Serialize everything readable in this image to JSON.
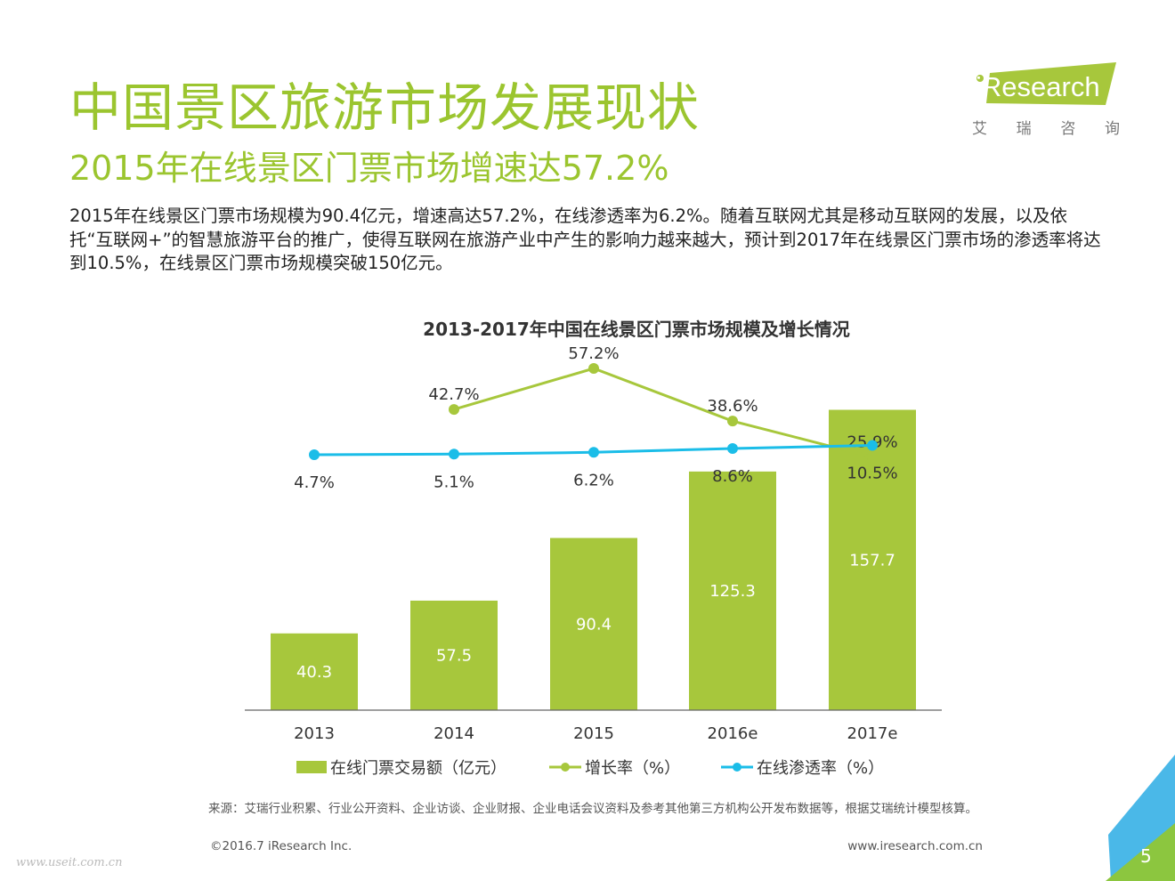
{
  "header": {
    "title": "中国景区旅游市场发展现状",
    "subtitle": "2015年在线景区门票市场增速达57.2%",
    "intro": "2015年在线景区门票市场规模为90.4亿元，增速高达57.2%，在线渗透率为6.2%。随着互联网尤其是移动互联网的发展，以及依托“互联网+”的智慧旅游平台的推广，使得互联网在旅游产业中产生的影响力越来越大，预计到2017年在线景区门票市场的渗透率将达到10.5%，在线景区门票市场规模突破150亿元。"
  },
  "logo": {
    "text": "iResearch",
    "subtitle": [
      "艾",
      "瑞",
      "咨",
      "询"
    ]
  },
  "colors": {
    "green": "#a7c73c",
    "title_green": "#9bc52f",
    "cyan": "#1bbde8",
    "triangle_green": "#8cc63f",
    "triangle_blue": "#4ab8e8"
  },
  "chart_data": {
    "type": "bar",
    "title": "2013-2017年中国在线景区门票市场规模及增长情况",
    "categories": [
      "2013",
      "2014",
      "2015",
      "2016e",
      "2017e"
    ],
    "series": [
      {
        "name": "在线门票交易额（亿元）",
        "kind": "bar",
        "values": [
          40.3,
          57.5,
          90.4,
          125.3,
          157.7
        ],
        "labels": [
          "40.3",
          "57.5",
          "90.4",
          "125.3",
          "157.7"
        ]
      },
      {
        "name": "增长率（%）",
        "kind": "line",
        "values": [
          null,
          42.7,
          57.2,
          38.6,
          25.9
        ],
        "labels": [
          "",
          "42.7%",
          "57.2%",
          "38.6%",
          "25.9%"
        ]
      },
      {
        "name": "在线渗透率（%）",
        "kind": "line",
        "values": [
          4.7,
          5.1,
          6.2,
          8.6,
          10.5
        ],
        "labels": [
          "4.7%",
          "5.1%",
          "6.2%",
          "8.6%",
          "10.5%"
        ]
      }
    ],
    "xlabel": "",
    "ylabel": "",
    "ylim": [
      0,
      160
    ],
    "legend_position": "bottom"
  },
  "footer": {
    "source": "来源：艾瑞行业积累、行业公开资料、企业访谈、企业财报、企业电话会议资料及参考其他第三方机构公开发布数据等，根据艾瑞统计模型核算。",
    "copyright": "©2016.7 iResearch Inc.",
    "website": "www.iresearch.com.cn",
    "page": "5",
    "watermark": "www.useit.com.cn"
  }
}
